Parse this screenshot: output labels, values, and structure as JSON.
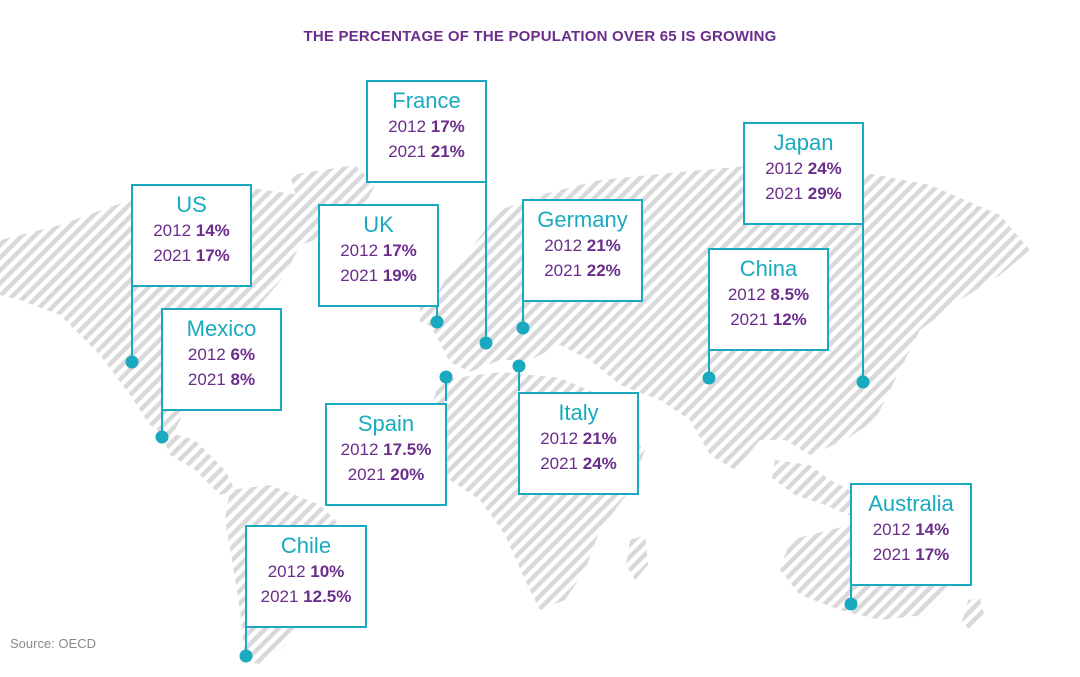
{
  "title": "THE PERCENTAGE OF THE POPULATION OVER 65 IS GROWING",
  "source": "Source: OECD",
  "colors": {
    "accent": "#1aaabf",
    "text": "#6b2d8b",
    "land": "#d9d9d9"
  },
  "countries": [
    {
      "name": "US",
      "year_a": "2012",
      "value_a": "14%",
      "year_b": "2021",
      "value_b": "17%"
    },
    {
      "name": "Mexico",
      "year_a": "2012",
      "value_a": "6%",
      "year_b": "2021",
      "value_b": "8%"
    },
    {
      "name": "UK",
      "year_a": "2012",
      "value_a": "17%",
      "year_b": "2021",
      "value_b": "19%"
    },
    {
      "name": "France",
      "year_a": "2012",
      "value_a": "17%",
      "year_b": "2021",
      "value_b": "21%"
    },
    {
      "name": "Germany",
      "year_a": "2012",
      "value_a": "21%",
      "year_b": "2021",
      "value_b": "22%"
    },
    {
      "name": "Spain",
      "year_a": "2012",
      "value_a": "17.5%",
      "year_b": "2021",
      "value_b": "20%"
    },
    {
      "name": "Italy",
      "year_a": "2012",
      "value_a": "21%",
      "year_b": "2021",
      "value_b": "24%"
    },
    {
      "name": "China",
      "year_a": "2012",
      "value_a": "8.5%",
      "year_b": "2021",
      "value_b": "12%"
    },
    {
      "name": "Japan",
      "year_a": "2012",
      "value_a": "24%",
      "year_b": "2021",
      "value_b": "29%"
    },
    {
      "name": "Chile",
      "year_a": "2012",
      "value_a": "10%",
      "year_b": "2021",
      "value_b": "12.5%"
    },
    {
      "name": "Australia",
      "year_a": "2012",
      "value_a": "14%",
      "year_b": "2021",
      "value_b": "17%"
    }
  ]
}
